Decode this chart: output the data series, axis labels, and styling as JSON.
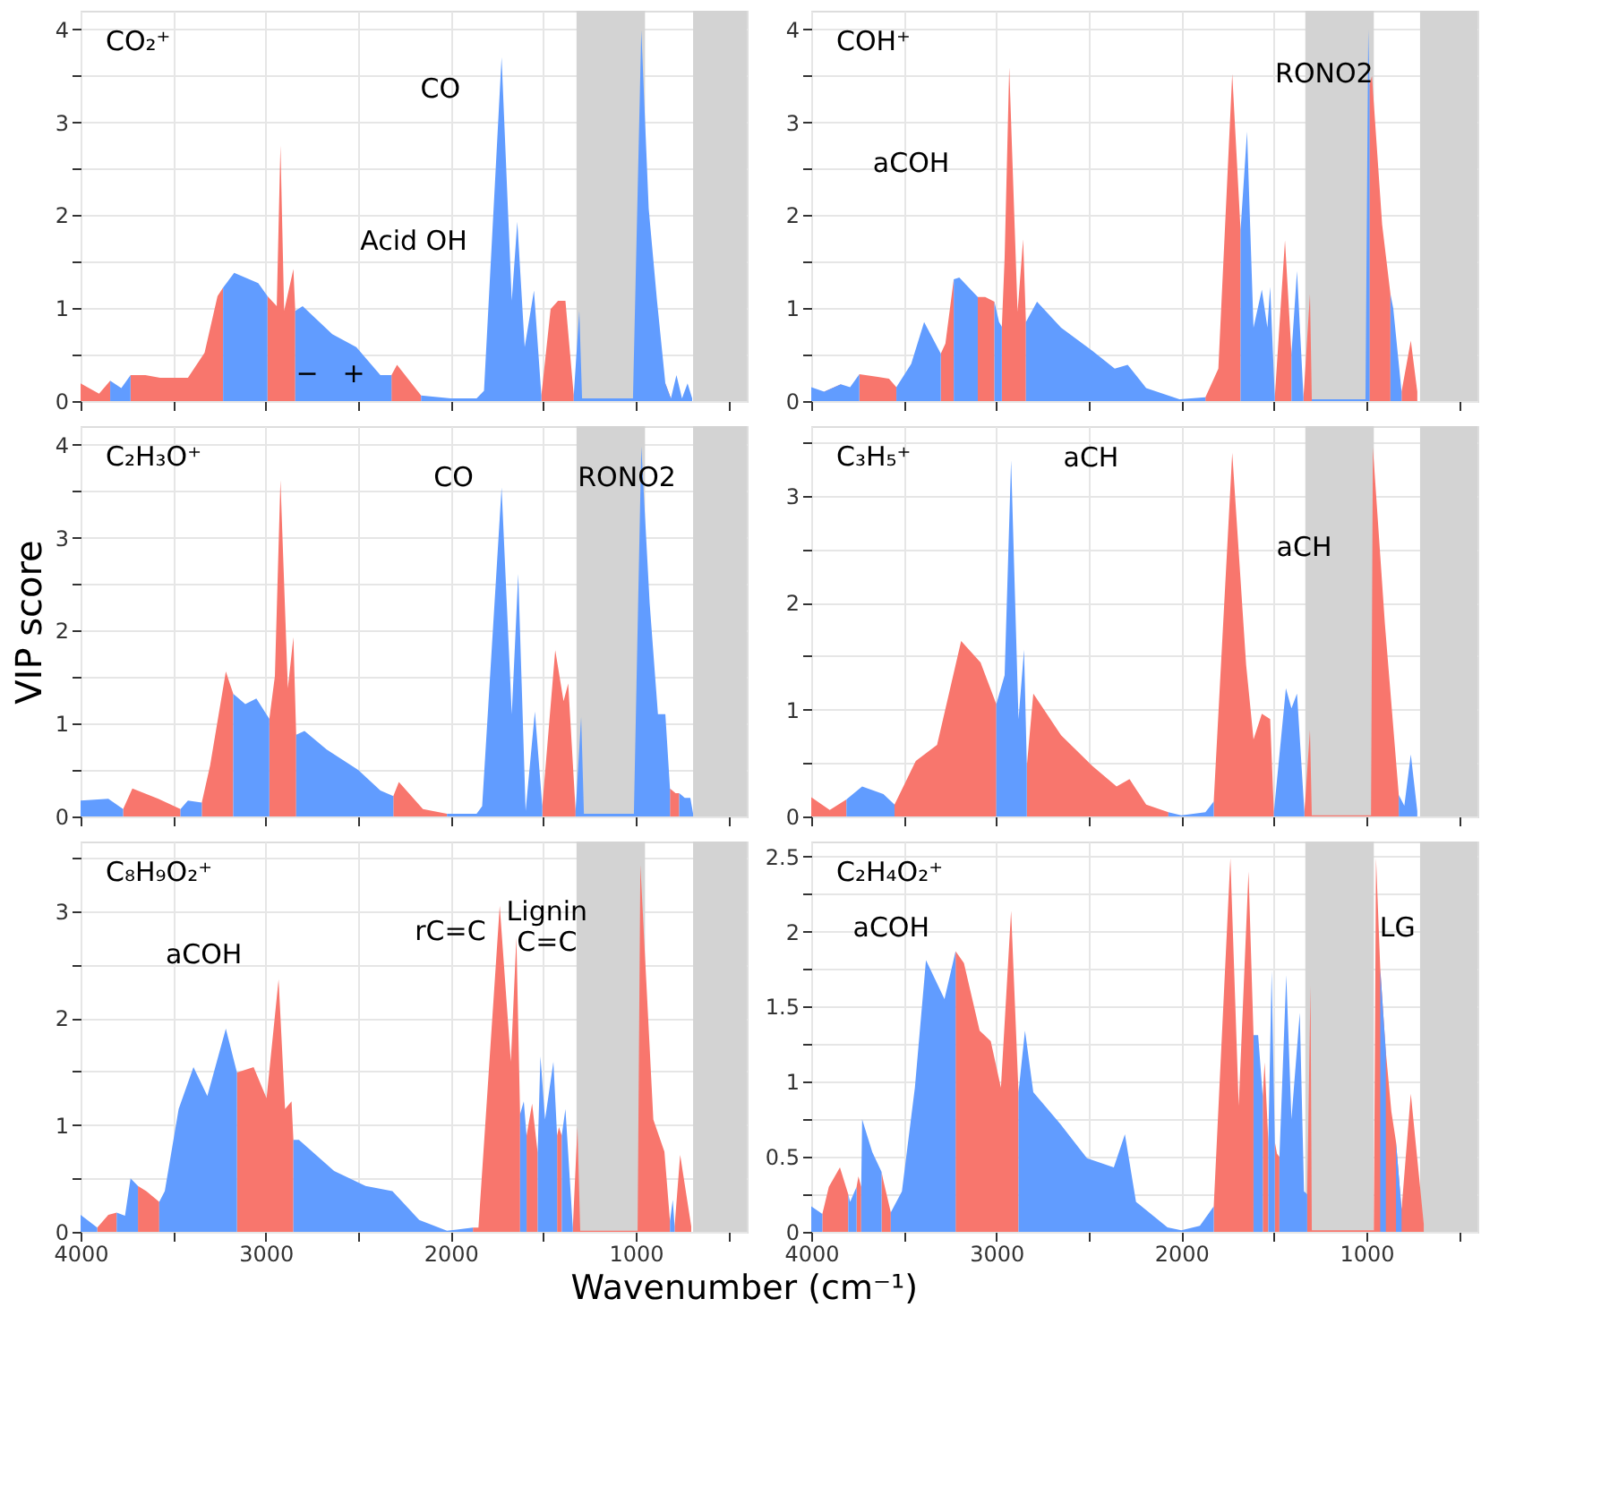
{
  "chart_data": [
    {
      "type": "area",
      "title": "CO₂⁺",
      "tick_labels": "y",
      "grid": true,
      "xlim": [
        4000,
        400
      ],
      "ylim": [
        0,
        4.2
      ],
      "xticks": [
        4000,
        {
          "value": 3500,
          "label": null
        },
        3000,
        {
          "value": 2500,
          "label": null
        },
        2000,
        {
          "value": 1500,
          "label": null
        },
        1000,
        {
          "value": 500,
          "label": null
        }
      ],
      "yticks": [
        0,
        {
          "value": 0.5,
          "label": null
        },
        1,
        {
          "value": 1.5,
          "label": null
        },
        2,
        {
          "value": 2.5,
          "label": null
        },
        3,
        {
          "value": 3.5,
          "label": null
        },
        4
      ],
      "bands": [
        {
          "axis": "x",
          "from": 1320,
          "to": 950,
          "color": "#d3d3d3"
        },
        {
          "axis": "x",
          "from": 690,
          "to": 400,
          "color": "#d3d3d3"
        }
      ],
      "x": [
        4000,
        3900,
        3840,
        3780,
        3730,
        3650,
        3570,
        3420,
        3330,
        3260,
        3230,
        3170,
        3040,
        2990,
        2940,
        2920,
        2900,
        2850,
        2840,
        2800,
        2640,
        2510,
        2380,
        2320,
        2290,
        2160,
        2000,
        1860,
        1820,
        1725,
        1670,
        1640,
        1600,
        1550,
        1510,
        1460,
        1420,
        1380,
        1335,
        1305,
        1290,
        1015,
        970,
        930,
        885,
        840,
        810,
        780,
        750,
        720,
        695
      ],
      "series": [
        {
          "color": "#f8766d",
          "values": [
            0.19,
            0.08,
            0.22,
            null,
            0.28,
            0.28,
            0.25,
            0.25,
            0.52,
            1.13,
            1.22,
            null,
            null,
            1.13,
            1.02,
            2.75,
            0.97,
            1.42,
            0.97,
            null,
            null,
            null,
            null,
            0.28,
            0.39,
            0.06,
            null,
            null,
            null,
            null,
            null,
            null,
            null,
            null,
            0.06,
            0.99,
            1.08,
            1.08,
            0.06,
            null,
            null,
            null,
            null,
            null,
            null,
            0.19,
            0.03,
            null,
            null,
            null,
            null
          ]
        },
        {
          "color": "#619cff",
          "values": [
            null,
            null,
            0.22,
            0.14,
            0.28,
            null,
            null,
            null,
            null,
            null,
            1.22,
            1.38,
            1.27,
            1.13,
            null,
            null,
            null,
            null,
            0.97,
            1.02,
            0.72,
            0.58,
            0.28,
            0.28,
            null,
            0.06,
            0.03,
            0.03,
            0.11,
            3.7,
            1.08,
            1.93,
            0.58,
            1.19,
            0.06,
            null,
            null,
            null,
            0.06,
            0.97,
            0.03,
            0.03,
            3.99,
            2.07,
            1.08,
            0.19,
            0.03,
            0.28,
            0.03,
            0.19,
            0.03
          ]
        }
      ],
      "annotations": [
        "CO",
        "Acid OH",
        "−",
        "+"
      ]
    },
    {
      "type": "area",
      "title": "COH⁺",
      "tick_labels": "y",
      "grid": true,
      "xlim": [
        4000,
        400
      ],
      "ylim": [
        0,
        4.2
      ],
      "xticks": [
        4000,
        {
          "value": 3500,
          "label": null
        },
        3000,
        {
          "value": 2500,
          "label": null
        },
        2000,
        {
          "value": 1500,
          "label": null
        },
        1000,
        {
          "value": 500,
          "label": null
        }
      ],
      "yticks": [
        0,
        {
          "value": 0.5,
          "label": null
        },
        1,
        {
          "value": 1.5,
          "label": null
        },
        2,
        {
          "value": 2.5,
          "label": null
        },
        3,
        {
          "value": 3.5,
          "label": null
        },
        4
      ],
      "bands": [
        {
          "axis": "x",
          "from": 1330,
          "to": 960,
          "color": "#d3d3d3"
        },
        {
          "axis": "x",
          "from": 710,
          "to": 400,
          "color": "#d3d3d3"
        }
      ],
      "x": [
        4000,
        3930,
        3840,
        3790,
        3740,
        3640,
        3580,
        3540,
        3460,
        3390,
        3300,
        3275,
        3230,
        3200,
        3100,
        3060,
        3010,
        2985,
        2970,
        2955,
        2930,
        2885,
        2855,
        2840,
        2780,
        2650,
        2480,
        2360,
        2290,
        2190,
        2010,
        1870,
        1800,
        1725,
        1680,
        1645,
        1610,
        1565,
        1535,
        1520,
        1495,
        1440,
        1405,
        1375,
        1340,
        1305,
        1295,
        1005,
        990,
        983,
        970,
        915,
        870,
        855,
        810,
        760,
        725
      ],
      "series": [
        {
          "color": "#f8766d",
          "values": [
            null,
            0.1,
            0.18,
            null,
            0.29,
            0.26,
            0.24,
            0.15,
            null,
            null,
            0.51,
            0.62,
            1.31,
            null,
            1.12,
            1.12,
            1.07,
            null,
            0.8,
            1.54,
            3.59,
            0.96,
            1.74,
            0.85,
            null,
            null,
            null,
            null,
            null,
            null,
            null,
            0.04,
            0.35,
            3.52,
            1.84,
            null,
            null,
            null,
            null,
            null,
            0.04,
            1.73,
            0.51,
            null,
            0.04,
            1.15,
            0.02,
            null,
            null,
            3.4,
            3.5,
            1.9,
            1.15,
            null,
            0.1,
            0.65,
            0.1
          ]
        },
        {
          "color": "#619cff",
          "values": [
            0.15,
            0.1,
            0.18,
            0.15,
            0.29,
            null,
            null,
            0.15,
            0.4,
            0.85,
            0.51,
            null,
            1.31,
            1.33,
            1.12,
            null,
            1.07,
            0.85,
            0.8,
            null,
            null,
            null,
            null,
            0.85,
            1.07,
            0.79,
            0.54,
            0.35,
            0.39,
            0.14,
            0.02,
            0.04,
            null,
            null,
            1.84,
            2.9,
            0.79,
            1.2,
            0.79,
            1.23,
            0.04,
            null,
            0.51,
            1.4,
            0.04,
            null,
            0.02,
            0.02,
            4.0,
            3.4,
            null,
            null,
            1.15,
            1.0,
            0.1,
            null,
            null
          ]
        }
      ],
      "annotations": [
        "aCOH",
        "RONO2"
      ]
    },
    {
      "type": "area",
      "title": "C₂H₃O⁺",
      "ylabel": "VIP score",
      "tick_labels": "y",
      "grid": true,
      "xlim": [
        4000,
        400
      ],
      "ylim": [
        0,
        4.2
      ],
      "xticks": [
        4000,
        {
          "value": 3500,
          "label": null
        },
        3000,
        {
          "value": 2500,
          "label": null
        },
        2000,
        {
          "value": 1500,
          "label": null
        },
        1000,
        {
          "value": 500,
          "label": null
        }
      ],
      "yticks": [
        0,
        {
          "value": 0.5,
          "label": null
        },
        1,
        {
          "value": 1.5,
          "label": null
        },
        2,
        {
          "value": 2.5,
          "label": null
        },
        3,
        {
          "value": 3.5,
          "label": null
        },
        4
      ],
      "bands": [
        {
          "axis": "x",
          "from": 1320,
          "to": 950,
          "color": "#d3d3d3"
        },
        {
          "axis": "x",
          "from": 690,
          "to": 400,
          "color": "#d3d3d3"
        }
      ],
      "x": [
        4000,
        3850,
        3770,
        3720,
        3580,
        3460,
        3420,
        3345,
        3300,
        3215,
        3175,
        3110,
        3050,
        2980,
        2950,
        2920,
        2880,
        2850,
        2835,
        2790,
        2670,
        2500,
        2380,
        2310,
        2280,
        2150,
        2020,
        1860,
        1830,
        1725,
        1670,
        1635,
        1595,
        1545,
        1505,
        1435,
        1390,
        1365,
        1325,
        1295,
        1280,
        1010,
        970,
        925,
        880,
        840,
        815,
        785,
        765,
        735,
        705,
        690
      ],
      "series": [
        {
          "color": "#f8766d",
          "values": [
            null,
            null,
            0.08,
            0.3,
            0.19,
            0.08,
            null,
            0.15,
            0.55,
            1.56,
            1.32,
            null,
            null,
            1.05,
            1.51,
            3.62,
            1.38,
            1.93,
            0.88,
            null,
            null,
            null,
            null,
            0.22,
            0.37,
            0.08,
            0.03,
            null,
            null,
            null,
            null,
            null,
            null,
            null,
            0.11,
            1.79,
            1.24,
            1.43,
            0.06,
            null,
            null,
            null,
            null,
            null,
            null,
            null,
            0.3,
            0.25,
            0.25,
            null,
            null,
            null
          ]
        },
        {
          "color": "#619cff",
          "values": [
            0.17,
            0.19,
            0.08,
            null,
            null,
            0.08,
            0.17,
            0.15,
            null,
            null,
            1.32,
            1.21,
            1.27,
            1.05,
            null,
            null,
            null,
            null,
            0.88,
            0.92,
            0.72,
            0.5,
            0.28,
            0.22,
            null,
            null,
            0.03,
            0.03,
            0.11,
            3.54,
            1.1,
            2.61,
            0.06,
            1.13,
            0.11,
            null,
            null,
            null,
            0.06,
            1.07,
            0.03,
            0.03,
            3.98,
            2.3,
            1.1,
            1.1,
            0.3,
            null,
            0.25,
            0.2,
            0.2,
            0.03
          ]
        }
      ],
      "annotations": [
        "CO",
        "RONO2"
      ]
    },
    {
      "type": "area",
      "title": "C₃H₅⁺",
      "tick_labels": "y",
      "grid": true,
      "xlim": [
        4000,
        400
      ],
      "ylim": [
        0,
        3.65
      ],
      "xticks": [
        4000,
        {
          "value": 3500,
          "label": null
        },
        3000,
        {
          "value": 2500,
          "label": null
        },
        2000,
        {
          "value": 1500,
          "label": null
        },
        1000,
        {
          "value": 500,
          "label": null
        }
      ],
      "yticks": [
        0,
        {
          "value": 0.5,
          "label": null
        },
        1,
        {
          "value": 1.5,
          "label": null
        },
        2,
        {
          "value": 2.5,
          "label": null
        },
        3,
        {
          "value": 3.5,
          "label": null
        }
      ],
      "bands": [
        {
          "axis": "x",
          "from": 1330,
          "to": 960,
          "color": "#d3d3d3"
        },
        {
          "axis": "x",
          "from": 710,
          "to": 400,
          "color": "#d3d3d3"
        }
      ],
      "x": [
        4000,
        3900,
        3810,
        3725,
        3610,
        3550,
        3435,
        3320,
        3190,
        3085,
        3000,
        2955,
        2920,
        2880,
        2850,
        2835,
        2800,
        2650,
        2480,
        2350,
        2280,
        2190,
        2070,
        2000,
        1870,
        1825,
        1725,
        1650,
        1610,
        1565,
        1520,
        1500,
        1435,
        1405,
        1375,
        1335,
        1305,
        1295,
        975,
        965,
        900,
        825,
        795,
        760,
        725
      ],
      "series": [
        {
          "color": "#f8766d",
          "values": [
            0.18,
            0.06,
            0.16,
            null,
            null,
            0.11,
            0.52,
            0.67,
            1.64,
            1.44,
            1.05,
            null,
            null,
            null,
            null,
            0.47,
            1.15,
            0.76,
            0.47,
            0.28,
            0.35,
            0.11,
            0.04,
            null,
            null,
            0.14,
            3.4,
            1.42,
            0.72,
            0.96,
            0.91,
            0.04,
            null,
            null,
            null,
            0.04,
            0.81,
            0.01,
            0.01,
            3.45,
            1.8,
            0.2,
            null,
            null,
            null
          ]
        },
        {
          "color": "#619cff",
          "values": [
            null,
            null,
            0.16,
            0.28,
            0.21,
            0.11,
            null,
            null,
            null,
            null,
            1.05,
            1.32,
            3.33,
            0.91,
            1.56,
            0.47,
            null,
            null,
            null,
            null,
            null,
            null,
            0.04,
            0.01,
            0.04,
            0.14,
            null,
            null,
            null,
            null,
            null,
            0.04,
            1.2,
            1.01,
            1.15,
            0.04,
            null,
            null,
            null,
            null,
            null,
            0.2,
            0.1,
            0.58,
            0.05
          ]
        }
      ],
      "annotations": [
        "aCH",
        "aCH"
      ]
    },
    {
      "type": "area",
      "title": "C₈H₉O₂⁺",
      "xlabel": "Wavenumber (cm⁻¹)",
      "grid": true,
      "xlim": [
        4000,
        400
      ],
      "ylim": [
        0,
        3.65
      ],
      "xticks": [
        4000,
        {
          "value": 3500,
          "label": null
        },
        3000,
        {
          "value": 2500,
          "label": null
        },
        2000,
        {
          "value": 1500,
          "label": null
        },
        1000,
        {
          "value": 500,
          "label": null
        }
      ],
      "yticks": [
        0,
        {
          "value": 0.5,
          "label": null
        },
        1,
        {
          "value": 1.5,
          "label": null
        },
        2,
        {
          "value": 2.5,
          "label": null
        },
        3,
        {
          "value": 3.5,
          "label": null
        }
      ],
      "bands": [
        {
          "axis": "x",
          "from": 1320,
          "to": 950,
          "color": "#d3d3d3"
        },
        {
          "axis": "x",
          "from": 690,
          "to": 400,
          "color": "#d3d3d3"
        }
      ],
      "x": [
        4000,
        3910,
        3850,
        3805,
        3760,
        3730,
        3690,
        3645,
        3575,
        3545,
        3470,
        3390,
        3315,
        3215,
        3155,
        3065,
        2995,
        2930,
        2895,
        2860,
        2850,
        2820,
        2630,
        2460,
        2315,
        2170,
        2020,
        1880,
        1850,
        1735,
        1675,
        1645,
        1625,
        1605,
        1590,
        1560,
        1530,
        1515,
        1490,
        1445,
        1425,
        1415,
        1400,
        1380,
        1340,
        1315,
        1300,
        990,
        975,
        905,
        845,
        815,
        800,
        790,
        760,
        700
      ],
      "series": [
        {
          "color": "#f8766d",
          "values": [
            null,
            0.04,
            0.16,
            0.18,
            null,
            null,
            0.43,
            0.38,
            0.28,
            null,
            null,
            null,
            null,
            null,
            1.49,
            1.54,
            1.25,
            2.36,
            1.15,
            1.22,
            0.86,
            null,
            null,
            null,
            null,
            null,
            null,
            0.04,
            0.04,
            3.05,
            1.59,
            2.75,
            1.1,
            null,
            0.9,
            1.2,
            0.74,
            null,
            null,
            null,
            0.9,
            0.98,
            0.9,
            null,
            0.04,
            0.98,
            0.01,
            0.01,
            3.43,
            1.05,
            0.75,
            0.1,
            null,
            0.05,
            0.72,
            0.05
          ]
        },
        {
          "color": "#619cff",
          "values": [
            0.16,
            0.04,
            null,
            0.18,
            0.15,
            0.5,
            0.43,
            null,
            0.28,
            0.38,
            1.15,
            1.54,
            1.27,
            1.9,
            1.49,
            null,
            null,
            null,
            null,
            null,
            0.86,
            0.86,
            0.57,
            0.43,
            0.38,
            0.11,
            0.01,
            0.04,
            null,
            null,
            null,
            null,
            1.1,
            1.22,
            0.9,
            null,
            0.74,
            1.64,
            1.05,
            1.59,
            0.9,
            null,
            0.9,
            1.15,
            0.04,
            null,
            null,
            null,
            null,
            null,
            null,
            0.1,
            0.3,
            0.05,
            null,
            null
          ]
        }
      ],
      "annotations": [
        "aCOH",
        "rC=C",
        "Lignin\nC=C"
      ]
    },
    {
      "type": "area",
      "title": "C₂H₄O₂⁺",
      "grid": true,
      "xlim": [
        4000,
        400
      ],
      "ylim": [
        0,
        2.6
      ],
      "xticks": [
        4000,
        {
          "value": 3500,
          "label": null
        },
        3000,
        {
          "value": 2500,
          "label": null
        },
        2000,
        {
          "value": 1500,
          "label": null
        },
        1000,
        {
          "value": 500,
          "label": null
        }
      ],
      "yticks": [
        0,
        {
          "value": 0.25,
          "label": null
        },
        0.5,
        {
          "value": 0.75,
          "label": null
        },
        1,
        {
          "value": 1.25,
          "label": null
        },
        1.5,
        {
          "value": 1.75,
          "label": null
        },
        2,
        {
          "value": 2.25,
          "label": null
        },
        2.5
      ],
      "bands": [
        {
          "axis": "x",
          "from": 1330,
          "to": 960,
          "color": "#d3d3d3"
        },
        {
          "axis": "x",
          "from": 710,
          "to": 400,
          "color": "#d3d3d3"
        }
      ],
      "x": [
        4000,
        3940,
        3905,
        3845,
        3800,
        3790,
        3755,
        3745,
        3730,
        3725,
        3670,
        3620,
        3610,
        3570,
        3510,
        3440,
        3380,
        3280,
        3220,
        3175,
        3090,
        3030,
        2975,
        2920,
        2880,
        2845,
        2800,
        2655,
        2510,
        2365,
        2305,
        2245,
        2075,
        2000,
        1900,
        1825,
        1735,
        1690,
        1637,
        1610,
        1585,
        1560,
        1550,
        1530,
        1512,
        1495,
        1483,
        1470,
        1433,
        1405,
        1360,
        1337,
        1320,
        1302,
        1295,
        960,
        948,
        925,
        895,
        865,
        840,
        810,
        760,
        690
      ],
      "series": [
        {
          "color": "#f8766d",
          "values": [
            null,
            0.12,
            0.3,
            0.43,
            0.25,
            null,
            0.3,
            0.37,
            0.3,
            null,
            null,
            0.4,
            0.34,
            0.13,
            null,
            null,
            null,
            null,
            1.87,
            1.79,
            1.34,
            1.27,
            0.96,
            2.14,
            0.93,
            null,
            null,
            null,
            null,
            null,
            null,
            null,
            null,
            null,
            null,
            0.17,
            2.49,
            0.84,
            2.4,
            1.31,
            null,
            0.9,
            1.13,
            0.6,
            null,
            0.6,
            0.52,
            0.5,
            null,
            null,
            null,
            null,
            0.25,
            1.64,
            0.01,
            0.01,
            2.49,
            1.75,
            1.2,
            0.8,
            0.6,
            0.15,
            0.92,
            0.05
          ]
        },
        {
          "color": "#619cff",
          "values": [
            0.17,
            0.12,
            null,
            null,
            0.25,
            0.2,
            0.3,
            null,
            0.3,
            0.75,
            0.53,
            0.4,
            null,
            0.13,
            0.27,
            0.96,
            1.81,
            1.55,
            1.87,
            null,
            null,
            null,
            null,
            null,
            0.93,
            1.34,
            0.93,
            0.72,
            0.49,
            0.43,
            0.65,
            0.2,
            0.03,
            0.01,
            0.04,
            0.17,
            null,
            null,
            null,
            1.31,
            1.31,
            0.9,
            null,
            0.6,
            1.74,
            0.6,
            null,
            0.5,
            1.71,
            0.75,
            1.46,
            0.27,
            0.25,
            null,
            null,
            null,
            null,
            1.75,
            1.2,
            null,
            0.6,
            0.15,
            null,
            null
          ]
        }
      ],
      "annotations": [
        "aCOH",
        "LG"
      ]
    }
  ]
}
